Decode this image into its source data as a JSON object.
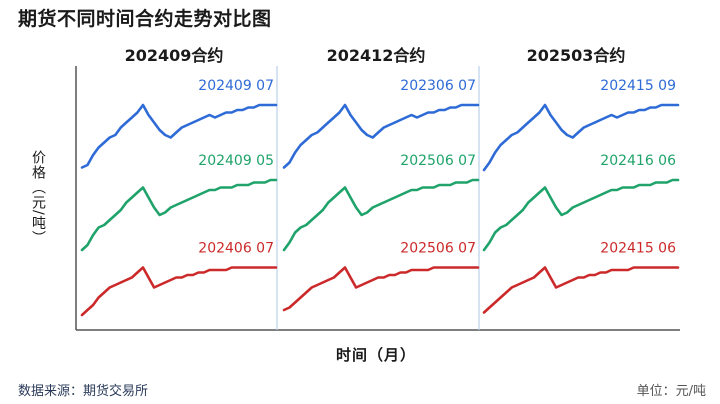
{
  "header": {
    "title": "期货不同时间合约走势对比图"
  },
  "axes": {
    "ylabel": "价格（元/吨）",
    "xlabel": "时间（月）"
  },
  "footer": {
    "source": "数据来源：期货交易所",
    "unit": "单位：元/吨"
  },
  "colors": {
    "blue": "#2e6bd6",
    "green": "#1fa36a",
    "red": "#cc2a2a",
    "axis": "#555555",
    "divider": "#b9d0ea"
  },
  "chart_data": {
    "type": "line",
    "xlabel": "时间（月）",
    "ylabel": "价格（元/吨）",
    "grid": false,
    "panels": [
      {
        "title": "202409合约",
        "series": [
          {
            "name": "202409 07",
            "color": "blue",
            "values": [
              45,
              46,
              50,
              53,
              55,
              57,
              58,
              61,
              63,
              65,
              67,
              70,
              66,
              63,
              60,
              58,
              57,
              59,
              61,
              62,
              63,
              64,
              65,
              66,
              65,
              66,
              67,
              67,
              68,
              68,
              69,
              69,
              70,
              70,
              70,
              70
            ]
          },
          {
            "name": "202409 05",
            "color": "green",
            "values": [
              12,
              14,
              18,
              21,
              22,
              24,
              26,
              28,
              31,
              33,
              35,
              37,
              33,
              29,
              26,
              27,
              29,
              30,
              31,
              32,
              33,
              34,
              35,
              36,
              36,
              37,
              37,
              37,
              38,
              38,
              38,
              39,
              39,
              39,
              40,
              40
            ]
          },
          {
            "name": "202406 07",
            "color": "red",
            "values": [
              -14,
              -12,
              -10,
              -7,
              -5,
              -3,
              -2,
              -1,
              0,
              1,
              3,
              5,
              1,
              -3,
              -2,
              -1,
              0,
              1,
              1,
              2,
              2,
              3,
              3,
              4,
              4,
              4,
              4,
              5,
              5,
              5,
              5,
              5,
              5,
              5,
              5,
              5
            ]
          }
        ]
      },
      {
        "title": "202412合约",
        "series": [
          {
            "name": "202306 07",
            "color": "blue",
            "values": [
              45,
              47,
              51,
              54,
              56,
              58,
              59,
              61,
              63,
              65,
              67,
              70,
              66,
              63,
              60,
              58,
              57,
              59,
              61,
              62,
              63,
              64,
              65,
              66,
              65,
              66,
              67,
              67,
              68,
              68,
              69,
              69,
              70,
              70,
              70,
              70
            ]
          },
          {
            "name": "202506 07",
            "color": "green",
            "values": [
              12,
              15,
              19,
              21,
              22,
              24,
              26,
              28,
              31,
              33,
              35,
              37,
              33,
              29,
              26,
              27,
              29,
              30,
              31,
              32,
              33,
              34,
              35,
              36,
              36,
              37,
              37,
              37,
              38,
              38,
              38,
              39,
              39,
              39,
              40,
              40
            ]
          },
          {
            "name": "202506 07",
            "color": "red",
            "values": [
              -12,
              -11,
              -9,
              -7,
              -5,
              -3,
              -2,
              -1,
              0,
              1,
              3,
              5,
              1,
              -3,
              -2,
              -1,
              0,
              1,
              1,
              2,
              2,
              3,
              3,
              4,
              4,
              4,
              4,
              5,
              5,
              5,
              5,
              5,
              5,
              5,
              5,
              5
            ]
          }
        ]
      },
      {
        "title": "202503合约",
        "series": [
          {
            "name": "202415 09",
            "color": "blue",
            "values": [
              44,
              47,
              51,
              54,
              56,
              58,
              59,
              61,
              63,
              65,
              67,
              70,
              66,
              63,
              60,
              58,
              57,
              59,
              61,
              62,
              63,
              64,
              65,
              66,
              65,
              66,
              67,
              67,
              68,
              68,
              69,
              69,
              70,
              70,
              70,
              70
            ]
          },
          {
            "name": "202416 06",
            "color": "green",
            "values": [
              12,
              15,
              19,
              21,
              22,
              24,
              26,
              28,
              31,
              33,
              35,
              37,
              33,
              29,
              26,
              27,
              29,
              30,
              31,
              32,
              33,
              34,
              35,
              36,
              36,
              37,
              37,
              37,
              38,
              38,
              38,
              39,
              39,
              39,
              40,
              40
            ]
          },
          {
            "name": "202415 06",
            "color": "red",
            "values": [
              -13,
              -11,
              -9,
              -7,
              -5,
              -3,
              -2,
              -1,
              0,
              1,
              3,
              5,
              1,
              -3,
              -2,
              -1,
              0,
              1,
              1,
              2,
              2,
              3,
              3,
              4,
              4,
              4,
              4,
              5,
              5,
              5,
              5,
              5,
              5,
              5,
              5,
              5
            ]
          }
        ]
      }
    ]
  }
}
